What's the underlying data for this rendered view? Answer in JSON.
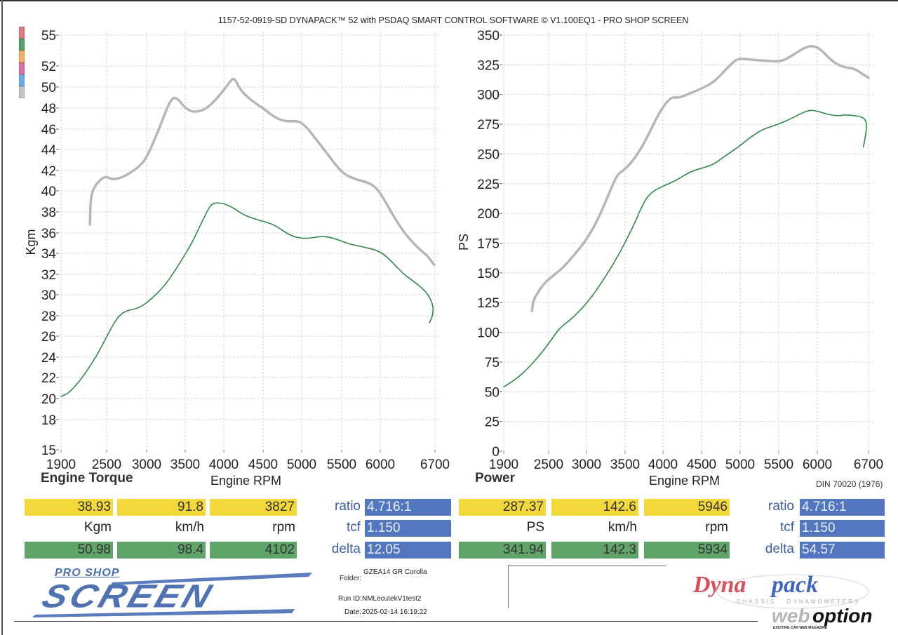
{
  "header": {
    "title": "1157-52-0919-SD DYNAPACK™ 52 with PSDAQ SMART CONTROL SOFTWARE © V1.100EQ1 - PRO SHOP SCREEN"
  },
  "legend_colors": [
    "#e37a83",
    "#4fa06a",
    "#f2b160",
    "#db6fa6",
    "#66aef0",
    "#c4c4c4"
  ],
  "colors": {
    "gray_curve": "#b9b5b6",
    "green_curve": "#2f8a4a",
    "yellow_cell": "#f3d83a",
    "green_cell": "#5fa468",
    "blue_cell": "#5277c0"
  },
  "chart_data": [
    {
      "type": "line",
      "title": "Engine Torque",
      "xlabel": "Engine RPM",
      "ylabel": "Kgm",
      "x_ticks": [
        1900,
        2500,
        3000,
        3500,
        4000,
        4500,
        5000,
        5500,
        6000,
        6700
      ],
      "y_ticks": [
        15,
        18,
        20,
        22,
        24,
        26,
        28,
        30,
        32,
        34,
        36,
        38,
        40,
        42,
        44,
        46,
        48,
        50,
        52,
        55
      ],
      "xlim": [
        1900,
        6700
      ],
      "ylim": [
        15,
        55
      ],
      "grid": true,
      "series": [
        {
          "name": "gray",
          "color": "#b9b5b6",
          "points": [
            [
              2280,
              36.8
            ],
            [
              2290,
              39.5
            ],
            [
              2350,
              40.6
            ],
            [
              2480,
              41.5
            ],
            [
              2560,
              41.1
            ],
            [
              2700,
              41.3
            ],
            [
              2900,
              42.3
            ],
            [
              3000,
              43.2
            ],
            [
              3150,
              45.8
            ],
            [
              3300,
              48.7
            ],
            [
              3380,
              49.1
            ],
            [
              3500,
              48.0
            ],
            [
              3600,
              47.6
            ],
            [
              3750,
              47.8
            ],
            [
              3900,
              48.8
            ],
            [
              4050,
              50.2
            ],
            [
              4130,
              51.0
            ],
            [
              4200,
              49.8
            ],
            [
              4350,
              48.7
            ],
            [
              4500,
              48.0
            ],
            [
              4650,
              47.1
            ],
            [
              4800,
              46.7
            ],
            [
              4950,
              46.8
            ],
            [
              5050,
              46.3
            ],
            [
              5200,
              44.8
            ],
            [
              5350,
              43.3
            ],
            [
              5500,
              41.8
            ],
            [
              5650,
              41.2
            ],
            [
              5850,
              40.8
            ],
            [
              5950,
              40.3
            ],
            [
              6050,
              39.2
            ],
            [
              6200,
              37.2
            ],
            [
              6350,
              35.6
            ],
            [
              6500,
              34.4
            ],
            [
              6600,
              33.8
            ],
            [
              6690,
              32.9
            ]
          ]
        },
        {
          "name": "green",
          "color": "#2f8a4a",
          "points": [
            [
              1900,
              20.2
            ],
            [
              2000,
              20.5
            ],
            [
              2150,
              21.7
            ],
            [
              2300,
              23.3
            ],
            [
              2450,
              25.2
            ],
            [
              2550,
              26.7
            ],
            [
              2650,
              28.0
            ],
            [
              2750,
              28.5
            ],
            [
              2900,
              28.7
            ],
            [
              3050,
              29.5
            ],
            [
              3250,
              31.0
            ],
            [
              3450,
              33.3
            ],
            [
              3600,
              35.2
            ],
            [
              3700,
              36.8
            ],
            [
              3800,
              38.3
            ],
            [
              3850,
              38.8
            ],
            [
              3950,
              38.9
            ],
            [
              4100,
              38.5
            ],
            [
              4250,
              37.7
            ],
            [
              4450,
              37.2
            ],
            [
              4650,
              36.8
            ],
            [
              4850,
              35.7
            ],
            [
              5050,
              35.4
            ],
            [
              5250,
              35.7
            ],
            [
              5400,
              35.5
            ],
            [
              5600,
              34.9
            ],
            [
              5800,
              34.6
            ],
            [
              6000,
              34.2
            ],
            [
              6150,
              33.2
            ],
            [
              6300,
              32.0
            ],
            [
              6450,
              31.2
            ],
            [
              6600,
              30.2
            ],
            [
              6680,
              29.0
            ],
            [
              6670,
              28.0
            ],
            [
              6630,
              27.3
            ]
          ]
        }
      ]
    },
    {
      "type": "line",
      "title": "Power",
      "xlabel": "Engine RPM",
      "ylabel": "PS",
      "x_ticks": [
        1900,
        2500,
        3000,
        3500,
        4000,
        4500,
        5000,
        5500,
        6000,
        6700
      ],
      "y_ticks": [
        0,
        25,
        50,
        75,
        100,
        125,
        150,
        175,
        200,
        225,
        250,
        275,
        300,
        325,
        350
      ],
      "xlim": [
        1900,
        6700
      ],
      "ylim": [
        0,
        350
      ],
      "grid": true,
      "annotation": "DIN 70020 (1976)",
      "series": [
        {
          "name": "gray",
          "color": "#b9b5b6",
          "points": [
            [
              2280,
              118
            ],
            [
              2290,
              126
            ],
            [
              2350,
              133
            ],
            [
              2450,
              142
            ],
            [
              2550,
              147
            ],
            [
              2700,
              155
            ],
            [
              2850,
              166
            ],
            [
              3000,
              178
            ],
            [
              3150,
              195
            ],
            [
              3300,
              218
            ],
            [
              3400,
              233
            ],
            [
              3500,
              237
            ],
            [
              3650,
              248
            ],
            [
              3800,
              265
            ],
            [
              3950,
              285
            ],
            [
              4100,
              298
            ],
            [
              4200,
              297
            ],
            [
              4350,
              301
            ],
            [
              4500,
              305
            ],
            [
              4650,
              310
            ],
            [
              4800,
              320
            ],
            [
              4950,
              330
            ],
            [
              5050,
              330
            ],
            [
              5200,
              329
            ],
            [
              5400,
              328
            ],
            [
              5550,
              328
            ],
            [
              5700,
              334
            ],
            [
              5850,
              340
            ],
            [
              5950,
              341
            ],
            [
              6050,
              338
            ],
            [
              6200,
              328
            ],
            [
              6350,
              323
            ],
            [
              6500,
              322
            ],
            [
              6600,
              318
            ],
            [
              6700,
              314
            ]
          ]
        },
        {
          "name": "green",
          "color": "#2f8a4a",
          "points": [
            [
              1900,
              54
            ],
            [
              2050,
              60
            ],
            [
              2200,
              68
            ],
            [
              2400,
              82
            ],
            [
              2550,
              95
            ],
            [
              2650,
              104
            ],
            [
              2800,
              111
            ],
            [
              3000,
              124
            ],
            [
              3200,
              142
            ],
            [
              3400,
              163
            ],
            [
              3600,
              188
            ],
            [
              3750,
              210
            ],
            [
              3850,
              218
            ],
            [
              4000,
              223
            ],
            [
              4150,
              227
            ],
            [
              4350,
              235
            ],
            [
              4500,
              238
            ],
            [
              4650,
              241
            ],
            [
              4800,
              248
            ],
            [
              5000,
              257
            ],
            [
              5150,
              265
            ],
            [
              5300,
              271
            ],
            [
              5500,
              275
            ],
            [
              5700,
              281
            ],
            [
              5850,
              286
            ],
            [
              5950,
              287
            ],
            [
              6100,
              284
            ],
            [
              6250,
              282
            ],
            [
              6400,
              283
            ],
            [
              6550,
              282
            ],
            [
              6650,
              280
            ],
            [
              6680,
              274
            ],
            [
              6650,
              262
            ],
            [
              6630,
              256
            ]
          ]
        }
      ]
    }
  ],
  "axes_labels": {
    "torque_title": "Engine Torque",
    "torque_xlabel": "Engine RPM",
    "power_title": "Power",
    "power_xlabel": "Engine RPM",
    "din": "DIN 70020 (1976)"
  },
  "torque_table": {
    "yellow": [
      "38.93",
      "91.8",
      "3827"
    ],
    "units": [
      "Kgm",
      "km/h",
      "rpm"
    ],
    "green": [
      "50.98",
      "98.4",
      "4102"
    ],
    "params": [
      {
        "label": "ratio",
        "value": "4.716:1"
      },
      {
        "label": "tcf",
        "value": "1.150"
      },
      {
        "label": "delta",
        "value": "12.05"
      }
    ]
  },
  "power_table": {
    "yellow": [
      "287.37",
      "142.6",
      "5946"
    ],
    "units": [
      "PS",
      "km/h",
      "rpm"
    ],
    "green": [
      "341.94",
      "142.3",
      "5934"
    ],
    "params": [
      {
        "label": "ratio",
        "value": "4.716:1"
      },
      {
        "label": "tcf",
        "value": "1.150"
      },
      {
        "label": "delta",
        "value": "54.57"
      }
    ]
  },
  "footer": {
    "logo_top": "PRO SHOP",
    "logo_main": "SCREEN",
    "folder_label": "Folder:",
    "folder_value": "GZEA14 GR Corolla",
    "runid_label": "Run ID:",
    "runid_value": "NMLecutekV1test2",
    "date_label": "Date:",
    "date_value": "2025-02-14 16:19:22",
    "dynapack_dyna": "Dyna",
    "dynapack_pack": "pack",
    "dynapack_sub": "CHASSIS   DYNAMOMETERS",
    "web": "web",
    "option": "option",
    "web_sub": "EXCITING CAR WEB MAGAZINE"
  }
}
